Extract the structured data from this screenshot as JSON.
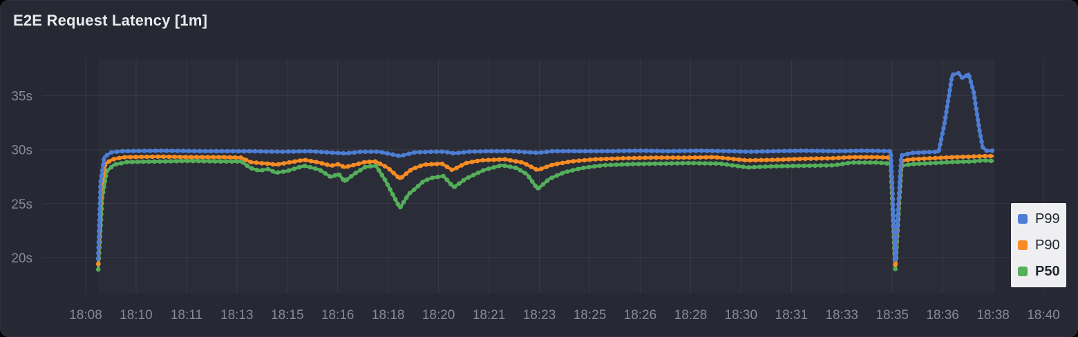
{
  "panel": {
    "title": "E2E Request Latency [1m]"
  },
  "colors": {
    "page_bg": "#000000",
    "panel_bg": "#262834",
    "plot_region_highlight": "rgba(255,255,255,0.02)",
    "grid": "rgba(255,255,255,0.07)",
    "axis_label": "#878b97",
    "title_text": "#e9eaec",
    "legend_bg": "#efeff1",
    "legend_text": "#20252f",
    "p99_blue": "#4d7ed3",
    "p90_orange": "#f68c23",
    "p50_green": "#55af5a"
  },
  "chart_data": {
    "type": "line",
    "title": "E2E Request Latency [1m]",
    "marker_style": "line-with-dots",
    "grid": true,
    "x_axis": {
      "unit": "time (HH:MM)",
      "start": "18:08",
      "end": "18:40",
      "span_minutes": 32,
      "tick_labels": [
        "18:08",
        "18:10",
        "18:11",
        "18:13",
        "18:15",
        "18:16",
        "18:18",
        "18:20",
        "18:21",
        "18:23",
        "18:25",
        "18:26",
        "18:28",
        "18:30",
        "18:31",
        "18:33",
        "18:35",
        "18:36",
        "18:38",
        "18:40"
      ]
    },
    "y_axis": {
      "unit": "s",
      "tick_values": [
        20,
        25,
        30,
        35
      ],
      "tick_labels": [
        "20s",
        "25s",
        "30s",
        "35s"
      ],
      "range": [
        16.7,
        38.4
      ]
    },
    "legend": {
      "position": "bottom-right",
      "entries": [
        {
          "label": "P99",
          "color": "#4d7ed3",
          "bold": false
        },
        {
          "label": "P90",
          "color": "#f68c23",
          "bold": false
        },
        {
          "label": "P50",
          "color": "#55af5a",
          "bold": true
        }
      ]
    },
    "series": [
      {
        "name": "P50",
        "color": "#55af5a",
        "points_minutes_after_1808_vs_seconds": [
          [
            0.42,
            18.9
          ],
          [
            0.55,
            25.5
          ],
          [
            0.7,
            28.0
          ],
          [
            0.95,
            28.6
          ],
          [
            1.4,
            28.85
          ],
          [
            2.5,
            28.9
          ],
          [
            3.5,
            28.95
          ],
          [
            4.5,
            28.9
          ],
          [
            5.2,
            28.9
          ],
          [
            5.5,
            28.3
          ],
          [
            5.8,
            28.05
          ],
          [
            6.1,
            28.2
          ],
          [
            6.35,
            27.85
          ],
          [
            6.7,
            28.0
          ],
          [
            7.0,
            28.25
          ],
          [
            7.3,
            28.5
          ],
          [
            7.8,
            28.15
          ],
          [
            8.2,
            27.45
          ],
          [
            8.45,
            27.75
          ],
          [
            8.65,
            27.05
          ],
          [
            9.0,
            27.8
          ],
          [
            9.35,
            28.4
          ],
          [
            9.7,
            28.5
          ],
          [
            10.0,
            27.2
          ],
          [
            10.5,
            24.6
          ],
          [
            10.8,
            25.9
          ],
          [
            11.0,
            26.35
          ],
          [
            11.3,
            27.1
          ],
          [
            11.6,
            27.4
          ],
          [
            11.95,
            27.55
          ],
          [
            12.3,
            26.5
          ],
          [
            12.7,
            27.3
          ],
          [
            13.3,
            28.1
          ],
          [
            13.9,
            28.55
          ],
          [
            14.4,
            28.3
          ],
          [
            14.75,
            27.7
          ],
          [
            15.1,
            26.35
          ],
          [
            15.5,
            27.3
          ],
          [
            16.0,
            27.9
          ],
          [
            16.6,
            28.3
          ],
          [
            17.3,
            28.55
          ],
          [
            18.2,
            28.65
          ],
          [
            19.2,
            28.7
          ],
          [
            20.2,
            28.75
          ],
          [
            21.2,
            28.7
          ],
          [
            22.1,
            28.35
          ],
          [
            23.0,
            28.45
          ],
          [
            24.0,
            28.5
          ],
          [
            25.0,
            28.55
          ],
          [
            25.6,
            28.8
          ],
          [
            26.4,
            28.8
          ],
          [
            26.9,
            28.7
          ],
          [
            27.05,
            18.9
          ],
          [
            27.25,
            28.5
          ],
          [
            27.6,
            28.65
          ],
          [
            28.3,
            28.75
          ],
          [
            29.0,
            28.85
          ],
          [
            29.6,
            28.9
          ],
          [
            30.0,
            29.0
          ],
          [
            30.3,
            28.95
          ]
        ]
      },
      {
        "name": "P90",
        "color": "#f68c23",
        "points_minutes_after_1808_vs_seconds": [
          [
            0.42,
            19.4
          ],
          [
            0.52,
            26.5
          ],
          [
            0.66,
            28.7
          ],
          [
            0.9,
            29.1
          ],
          [
            1.3,
            29.3
          ],
          [
            2.5,
            29.35
          ],
          [
            3.5,
            29.3
          ],
          [
            4.6,
            29.3
          ],
          [
            5.2,
            29.25
          ],
          [
            5.5,
            28.85
          ],
          [
            5.8,
            28.75
          ],
          [
            6.1,
            28.7
          ],
          [
            6.35,
            28.6
          ],
          [
            7.0,
            28.9
          ],
          [
            7.3,
            29.05
          ],
          [
            7.8,
            28.8
          ],
          [
            8.2,
            28.5
          ],
          [
            8.45,
            28.65
          ],
          [
            8.65,
            28.35
          ],
          [
            9.0,
            28.6
          ],
          [
            9.35,
            28.85
          ],
          [
            9.7,
            28.9
          ],
          [
            10.1,
            28.3
          ],
          [
            10.5,
            27.3
          ],
          [
            10.9,
            28.2
          ],
          [
            11.3,
            28.6
          ],
          [
            11.9,
            28.7
          ],
          [
            12.25,
            28.1
          ],
          [
            12.7,
            28.75
          ],
          [
            13.2,
            29.0
          ],
          [
            14.0,
            29.1
          ],
          [
            14.6,
            28.8
          ],
          [
            15.1,
            28.1
          ],
          [
            15.6,
            28.6
          ],
          [
            16.2,
            28.9
          ],
          [
            17.0,
            29.1
          ],
          [
            18.0,
            29.2
          ],
          [
            19.0,
            29.25
          ],
          [
            20.0,
            29.25
          ],
          [
            21.0,
            29.3
          ],
          [
            22.1,
            29.0
          ],
          [
            23.0,
            29.05
          ],
          [
            24.0,
            29.15
          ],
          [
            25.0,
            29.2
          ],
          [
            25.6,
            29.3
          ],
          [
            26.4,
            29.3
          ],
          [
            26.9,
            29.25
          ],
          [
            27.05,
            19.3
          ],
          [
            27.25,
            28.95
          ],
          [
            27.6,
            29.1
          ],
          [
            28.3,
            29.2
          ],
          [
            29.0,
            29.3
          ],
          [
            29.6,
            29.35
          ],
          [
            30.0,
            29.4
          ],
          [
            30.3,
            29.4
          ]
        ]
      },
      {
        "name": "P99",
        "color": "#4d7ed3",
        "points_minutes_after_1808_vs_seconds": [
          [
            0.42,
            19.9
          ],
          [
            0.5,
            27.0
          ],
          [
            0.62,
            29.3
          ],
          [
            0.85,
            29.75
          ],
          [
            1.2,
            29.85
          ],
          [
            2.5,
            29.9
          ],
          [
            4.0,
            29.85
          ],
          [
            5.5,
            29.85
          ],
          [
            6.5,
            29.8
          ],
          [
            7.5,
            29.85
          ],
          [
            8.3,
            29.7
          ],
          [
            8.7,
            29.65
          ],
          [
            9.2,
            29.8
          ],
          [
            9.8,
            29.8
          ],
          [
            10.5,
            29.4
          ],
          [
            11.0,
            29.75
          ],
          [
            11.6,
            29.8
          ],
          [
            12.0,
            29.8
          ],
          [
            12.3,
            29.65
          ],
          [
            12.8,
            29.8
          ],
          [
            13.5,
            29.85
          ],
          [
            14.2,
            29.85
          ],
          [
            15.1,
            29.7
          ],
          [
            15.6,
            29.85
          ],
          [
            16.5,
            29.85
          ],
          [
            17.5,
            29.85
          ],
          [
            18.5,
            29.9
          ],
          [
            19.5,
            29.85
          ],
          [
            20.5,
            29.9
          ],
          [
            21.5,
            29.85
          ],
          [
            22.2,
            29.8
          ],
          [
            23.0,
            29.85
          ],
          [
            24.0,
            29.9
          ],
          [
            25.0,
            29.85
          ],
          [
            26.0,
            29.9
          ],
          [
            26.9,
            29.85
          ],
          [
            27.05,
            19.8
          ],
          [
            27.25,
            29.45
          ],
          [
            27.6,
            29.7
          ],
          [
            28.0,
            29.75
          ],
          [
            28.5,
            29.8
          ],
          [
            28.7,
            32.5
          ],
          [
            28.95,
            36.9
          ],
          [
            29.15,
            37.1
          ],
          [
            29.3,
            36.6
          ],
          [
            29.5,
            37.0
          ],
          [
            29.67,
            35.3
          ],
          [
            29.85,
            32.0
          ],
          [
            29.97,
            30.2
          ],
          [
            30.1,
            29.9
          ],
          [
            30.3,
            29.9
          ]
        ]
      }
    ]
  }
}
